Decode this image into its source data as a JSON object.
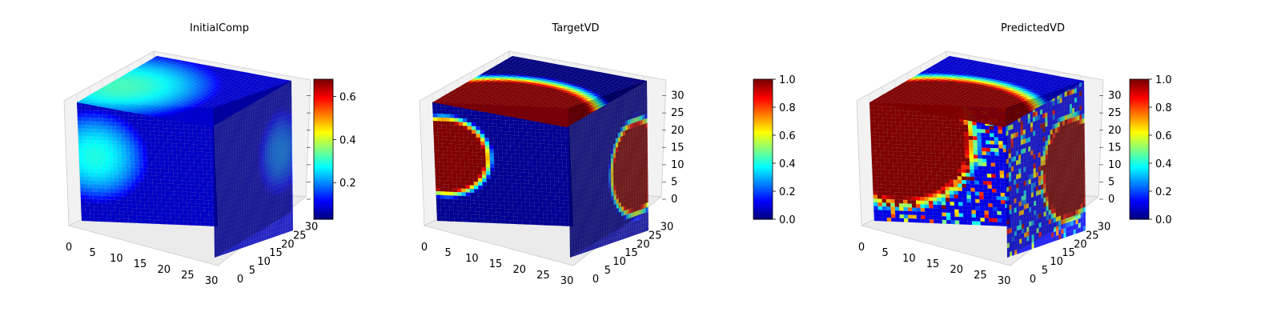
{
  "chart_data": [
    {
      "type": "3d-voxel",
      "title": "InitialComp",
      "colormap": "jet",
      "x_ticks": [
        "0",
        "5",
        "10",
        "15",
        "20",
        "25",
        "30"
      ],
      "y_ticks": [
        "0",
        "5",
        "10",
        "15",
        "20",
        "25",
        "30"
      ],
      "z_ticks": [
        "",
        "",
        "",
        "",
        "",
        "",
        ""
      ],
      "axis_range": [
        0,
        32
      ],
      "colorbar": {
        "range": [
          0.03,
          0.68
        ],
        "ticks": [
          "0.2",
          "0.4",
          "0.6"
        ],
        "tick_values": [
          0.2,
          0.4,
          0.6
        ]
      },
      "top_face": {
        "base": 0.08,
        "blobs": [
          {
            "cx": 0.1,
            "cy": 0.6,
            "r": 0.65,
            "v": 0.44
          }
        ]
      },
      "front_face": {
        "base": 0.07,
        "blobs": [
          {
            "cx": 0.12,
            "cy": 0.45,
            "r": 0.4,
            "v": 0.4
          }
        ]
      },
      "side_face": {
        "base": 0.06,
        "blobs": [
          {
            "cx": 0.85,
            "cy": 0.45,
            "r": 0.3,
            "v": 0.25
          }
        ]
      }
    },
    {
      "type": "3d-voxel",
      "title": "TargetVD",
      "colormap": "jet",
      "x_ticks": [
        "0",
        "5",
        "10",
        "15",
        "20",
        "25",
        "30"
      ],
      "y_ticks": [
        "0",
        "5",
        "10",
        "15",
        "20",
        "25",
        "30"
      ],
      "z_ticks": [
        "0",
        "5",
        "10",
        "15",
        "20",
        "25",
        "30"
      ],
      "axis_range": [
        0,
        32
      ],
      "colorbar": {
        "range": [
          0.0,
          1.0
        ],
        "ticks": [
          "0.0",
          "0.2",
          "0.4",
          "0.6",
          "0.8",
          "1.0"
        ],
        "tick_values": [
          0.0,
          0.2,
          0.4,
          0.6,
          0.8,
          1.0
        ]
      },
      "top_face": {
        "base": 0.0,
        "blobs": [
          {
            "cx": 0.45,
            "cy": 1.05,
            "r": 0.8,
            "v": 1.0
          }
        ]
      },
      "front_face": {
        "base": 0.02,
        "blobs": [
          {
            "cx": 0.08,
            "cy": 0.45,
            "r": 0.36,
            "v": 1.0
          }
        ]
      },
      "side_face": {
        "base": 0.02,
        "blobs": [
          {
            "cx": 0.85,
            "cy": 0.55,
            "r": 0.35,
            "v": 1.0
          }
        ]
      }
    },
    {
      "type": "3d-voxel",
      "title": "PredictedVD",
      "colormap": "jet",
      "x_ticks": [
        "0",
        "5",
        "10",
        "15",
        "20",
        "25",
        "30"
      ],
      "y_ticks": [
        "0",
        "5",
        "10",
        "15",
        "20",
        "25",
        "30"
      ],
      "z_ticks": [
        "0",
        "5",
        "10",
        "15",
        "20",
        "25",
        "30"
      ],
      "axis_range": [
        0,
        32
      ],
      "colorbar": {
        "range": [
          0.0,
          1.0
        ],
        "ticks": [
          "0.0",
          "0.2",
          "0.4",
          "0.6",
          "0.8",
          "1.0"
        ],
        "tick_values": [
          0.0,
          0.2,
          0.4,
          0.6,
          0.8,
          1.0
        ]
      },
      "top_face": {
        "base": 0.08,
        "blobs": [
          {
            "cx": 0.45,
            "cy": 1.05,
            "r": 0.82,
            "v": 1.0
          }
        ]
      },
      "front_face": {
        "base": 0.1,
        "blobs": [
          {
            "cx": 0.2,
            "cy": 0.3,
            "r": 0.62,
            "v": 1.0
          }
        ],
        "noise": 0.35
      },
      "side_face": {
        "base": 0.12,
        "blobs": [
          {
            "cx": 0.8,
            "cy": 0.55,
            "r": 0.38,
            "v": 1.0
          }
        ],
        "noise": 0.3
      }
    }
  ]
}
